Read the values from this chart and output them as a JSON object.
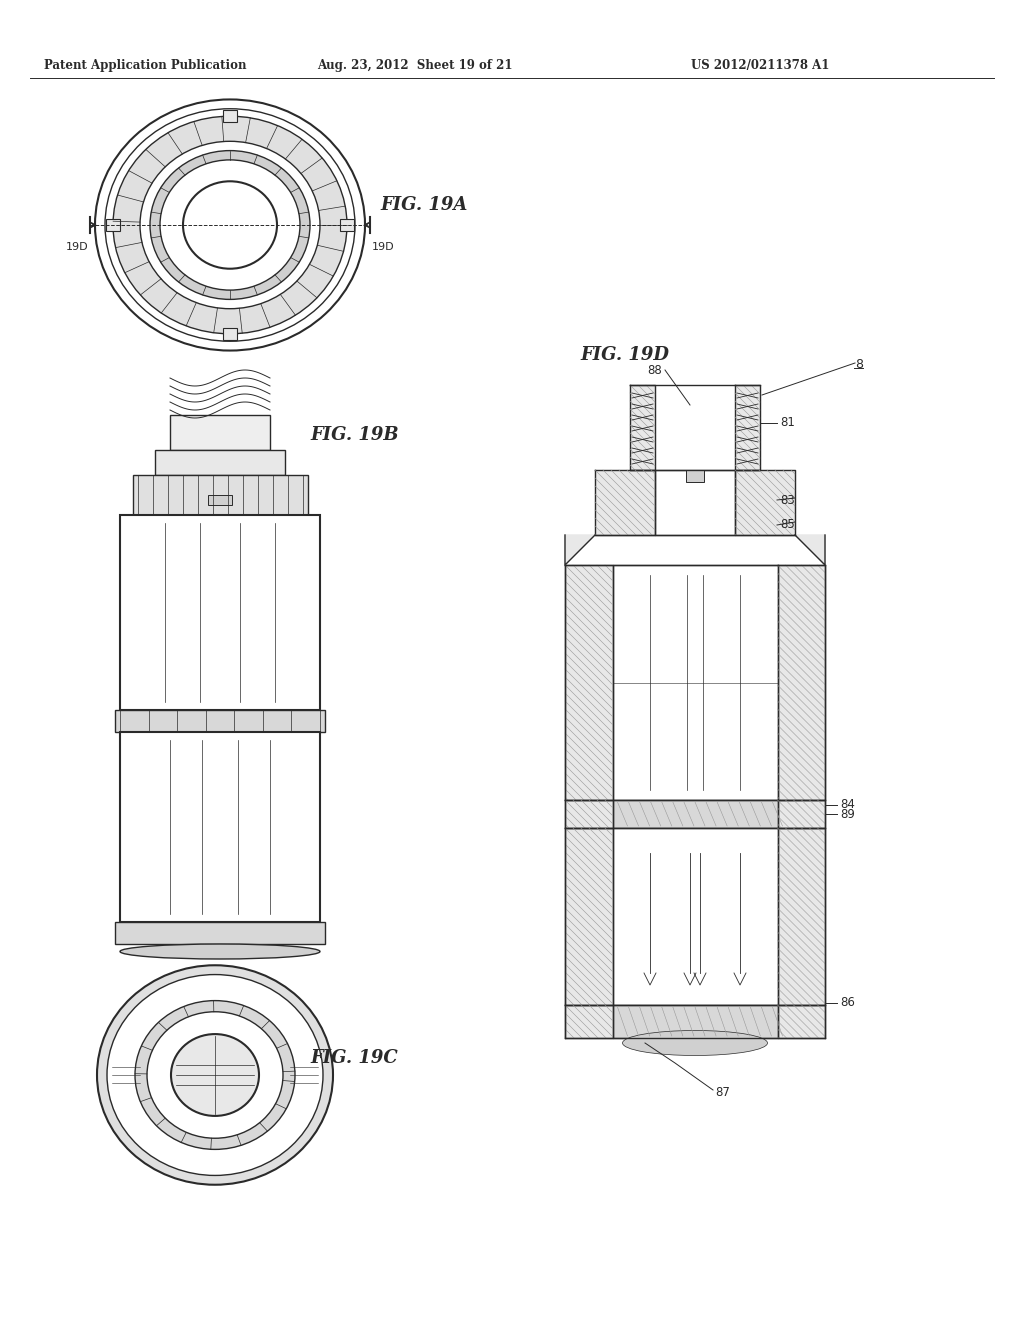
{
  "bg_color": "#ffffff",
  "line_color": "#2a2a2a",
  "hatch_color": "#888888",
  "header_left": "Patent Application Publication",
  "header_mid": "Aug. 23, 2012  Sheet 19 of 21",
  "header_right": "US 2012/0211378 A1",
  "fig19a_label": "FIG. 19A",
  "fig19b_label": "FIG. 19B",
  "fig19c_label": "FIG. 19C",
  "fig19d_label": "FIG. 19D",
  "ref_8": "8",
  "ref_81": "81",
  "ref_83": "83",
  "ref_84": "84",
  "ref_85": "85",
  "ref_86": "86",
  "ref_87": "87",
  "ref_88": "88",
  "ref_89": "89",
  "ref_19D_left": "19D",
  "ref_19D_right": "19D"
}
